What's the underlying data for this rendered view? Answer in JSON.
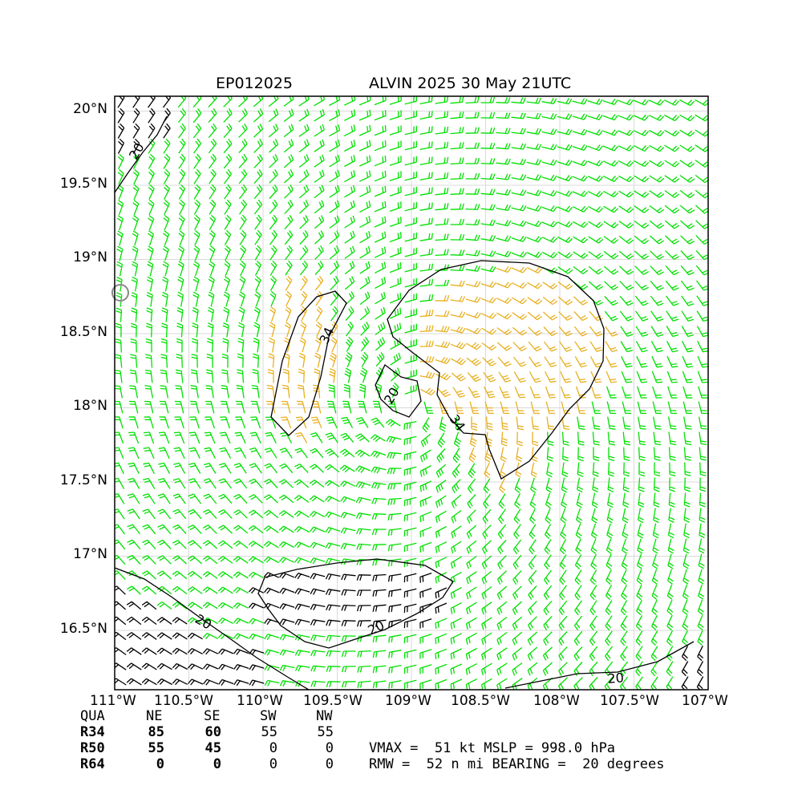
{
  "header": {
    "storm_id": "EP012025",
    "storm_title": "ALVIN 2025 30 May 21UTC"
  },
  "map": {
    "lon_range": [
      -111.0,
      -107.0
    ],
    "lat_range": [
      16.1,
      20.1
    ],
    "center": {
      "lon": -109.0,
      "lat": 18.0
    },
    "lon_ticks": [
      "111°W",
      "110.5°W",
      "110°W",
      "109.5°W",
      "109°W",
      "108.5°W",
      "108°W",
      "107.5°W",
      "107°W"
    ],
    "lat_ticks": [
      "20°N",
      "19.5°N",
      "19°N",
      "18.5°N",
      "18°N",
      "17.5°N",
      "17°N",
      "16.5°N"
    ],
    "contour_labels": [
      "20",
      "34",
      "20",
      "34",
      "20",
      "20",
      "20"
    ],
    "colors": {
      "barb_green": "#00e000",
      "barb_orange": "#e8b020",
      "barb_black": "#000000",
      "contour": "#000000",
      "grid": "#d9d9d9"
    }
  },
  "wind_radii": {
    "headers": [
      "QUA",
      "NE",
      "SE",
      "SW",
      "NW"
    ],
    "rows": [
      {
        "label": "R34",
        "values": [
          "85",
          "60",
          "55",
          "55"
        ]
      },
      {
        "label": "R50",
        "values": [
          "55",
          "45",
          "0",
          "0"
        ]
      },
      {
        "label": "R64",
        "values": [
          "0",
          "0",
          "0",
          "0"
        ]
      }
    ]
  },
  "stats": {
    "line1": "VMAX =  51 kt MSLP = 998.0 hPa",
    "line2": "RMW =  52 n mi BEARING =  20 degrees"
  }
}
